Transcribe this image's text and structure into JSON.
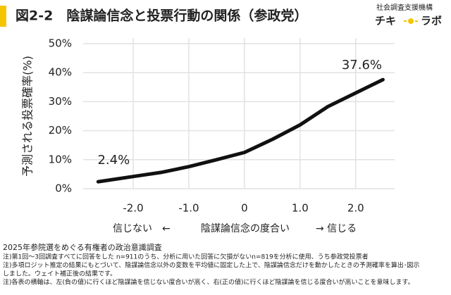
{
  "chart_data": {
    "type": "line",
    "title": "図2-2　陰謀論信念と投票行動の関係（参政党）",
    "logo": {
      "org": "社会調査支援機構",
      "left": "チキ",
      "right": "ラボ"
    },
    "y_label": "予測される投票確率(%)",
    "x_label": "陰謀論信念の度合い",
    "x_left_label": "信じない　←",
    "x_right_label": "→ 信じる",
    "x": [
      -2.63,
      -2.0,
      -1.5,
      -1.0,
      -0.5,
      0.0,
      0.5,
      1.0,
      1.5,
      2.0,
      2.49
    ],
    "series": [
      {
        "color": "#111111",
        "values": [
          2.4,
          4.2,
          5.6,
          7.6,
          10.0,
          12.5,
          17.0,
          22.0,
          28.3,
          33.0,
          37.6
        ],
        "value_labels": [
          "2.4%",
          null,
          null,
          null,
          null,
          null,
          null,
          null,
          null,
          null,
          "37.6%"
        ]
      }
    ],
    "xlim": [
      -2.9,
      2.7
    ],
    "ylim": [
      0,
      50
    ],
    "xticks": [
      {
        "value": -2,
        "label": "-2.0"
      },
      {
        "value": -1,
        "label": "-1.0"
      },
      0,
      {
        "value": 1,
        "label": "1.0"
      },
      {
        "value": 2,
        "label": "2.0"
      }
    ],
    "yticks": [
      {
        "value": 0,
        "label": "0%"
      },
      {
        "value": 10,
        "label": "10%"
      },
      {
        "value": 20,
        "label": "20%"
      },
      {
        "value": 30,
        "label": "30%"
      },
      {
        "value": 40,
        "label": "40%"
      },
      {
        "value": 50,
        "label": "50%"
      }
    ],
    "grid": true,
    "source": "2025年参院選をめぐる有権者の政治意識調査",
    "notes": [
      "注)第1回～3回調査すべてに回答をした n=911のうち、分析に用いた回答に欠損がないn=819を分析に使用、うち参政党投票者",
      "注)多項ロジット推定の結果にもとづいて、陰謀論信念以外の変数を平均値に固定した上で、陰謀論信念だけを動かしたときの予測確率を算出･図示",
      "しました。ウェイト補正後の結果です。",
      "注)各表の横軸は、左(負の値)に行くほど陰謀論を信じない度合いが高く、右(正の値)に行くほど陰謀論を信じる度合いが高いことを意味します。"
    ]
  }
}
